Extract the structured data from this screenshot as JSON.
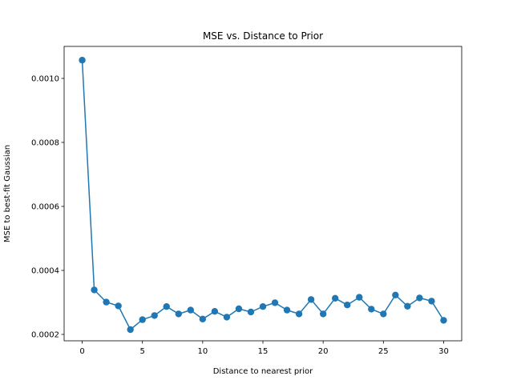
{
  "chart_data": {
    "type": "line",
    "title": "MSE vs. Distance to Prior",
    "xlabel": "Distance to nearest prior",
    "ylabel": "MSE to best-fit Gaussian",
    "xlim": [
      -1.5,
      31.5
    ],
    "ylim": [
      0.00018,
      0.0011
    ],
    "xticks": [
      0,
      5,
      10,
      15,
      20,
      25,
      30
    ],
    "xtick_labels": [
      "0",
      "5",
      "10",
      "15",
      "20",
      "25",
      "30"
    ],
    "yticks": [
      0.0002,
      0.0004,
      0.0006,
      0.0008,
      0.001
    ],
    "ytick_labels": [
      "0.0002",
      "0.0004",
      "0.0006",
      "0.0008",
      "0.0010"
    ],
    "grid": false,
    "legend": false,
    "series": [
      {
        "color": "#1f77b4",
        "marker": "circle",
        "x": [
          0,
          1,
          2,
          3,
          4,
          5,
          6,
          7,
          8,
          9,
          10,
          11,
          12,
          13,
          14,
          15,
          16,
          17,
          18,
          19,
          20,
          21,
          22,
          23,
          24,
          25,
          26,
          27,
          28,
          29,
          30
        ],
        "values": [
          0.001057,
          0.000339,
          0.000301,
          0.000289,
          0.000215,
          0.000246,
          0.000259,
          0.000287,
          0.000264,
          0.000276,
          0.000248,
          0.000272,
          0.000254,
          0.00028,
          0.00027,
          0.000287,
          0.000299,
          0.000276,
          0.000264,
          0.000309,
          0.000264,
          0.000313,
          0.000292,
          0.000316,
          0.000279,
          0.000264,
          0.000323,
          0.000288,
          0.000314,
          0.000304,
          0.000244
        ]
      }
    ]
  }
}
